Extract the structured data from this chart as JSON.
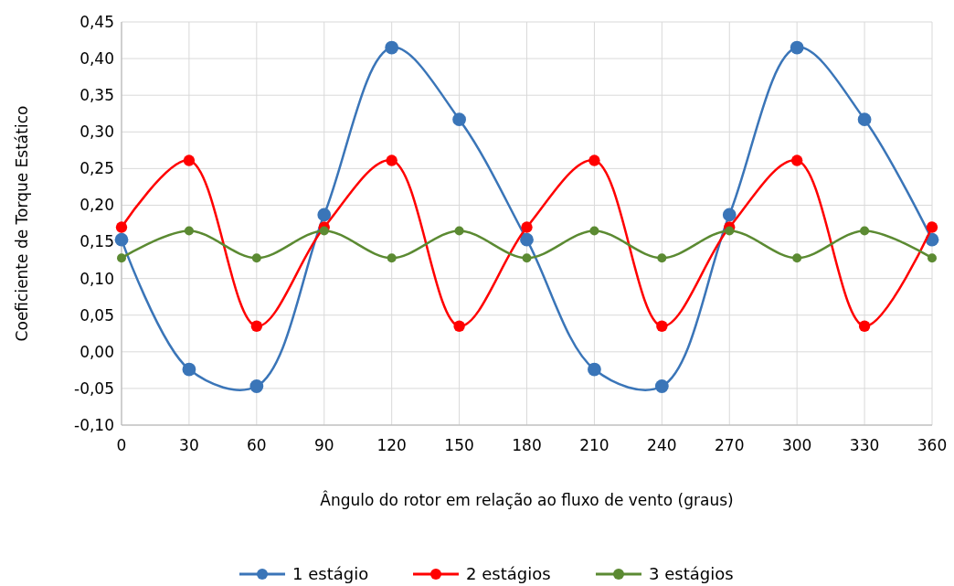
{
  "chart_data": {
    "type": "line",
    "xlabel": "Ângulo do rotor em relação ao fluxo de vento (graus)",
    "ylabel": "Coeficiente de Torque Estático",
    "x": [
      0,
      30,
      60,
      90,
      120,
      150,
      180,
      210,
      240,
      270,
      300,
      330,
      360
    ],
    "series": [
      {
        "name": "1 estágio",
        "color": "#3a75b8",
        "values": [
          0.153,
          -0.024,
          -0.047,
          0.187,
          0.415,
          0.317,
          0.153,
          -0.024,
          -0.047,
          0.187,
          0.415,
          0.317,
          0.153
        ]
      },
      {
        "name": "2 estágios",
        "color": "#ff0000",
        "values": [
          0.17,
          0.261,
          0.035,
          0.17,
          0.261,
          0.035,
          0.17,
          0.261,
          0.035,
          0.17,
          0.261,
          0.035,
          0.17
        ]
      },
      {
        "name": "3 estágios",
        "color": "#5b8a32",
        "values": [
          0.128,
          0.165,
          0.128,
          0.165,
          0.128,
          0.165,
          0.128,
          0.165,
          0.128,
          0.165,
          0.128,
          0.165,
          0.128
        ]
      }
    ],
    "xlim": [
      0,
      360
    ],
    "xticks": [
      0,
      30,
      60,
      90,
      120,
      150,
      180,
      210,
      240,
      270,
      300,
      330,
      360
    ],
    "ylim": [
      -0.1,
      0.45
    ],
    "yticks": [
      {
        "value": -0.1,
        "label": "-0,10"
      },
      {
        "value": -0.05,
        "label": "-0,05"
      },
      {
        "value": 0,
        "label": "0,00"
      },
      {
        "value": 0.05,
        "label": "0,05"
      },
      {
        "value": 0.1,
        "label": "0,10"
      },
      {
        "value": 0.15,
        "label": "0,15"
      },
      {
        "value": 0.2,
        "label": "0,20"
      },
      {
        "value": 0.25,
        "label": "0,25"
      },
      {
        "value": 0.3,
        "label": "0,30"
      },
      {
        "value": 0.35,
        "label": "0,35"
      },
      {
        "value": 0.4,
        "label": "0,40"
      },
      {
        "value": 0.45,
        "label": "0,45"
      }
    ],
    "grid": true,
    "legend": "bottom",
    "marker": "circle",
    "line_style": "solid"
  }
}
